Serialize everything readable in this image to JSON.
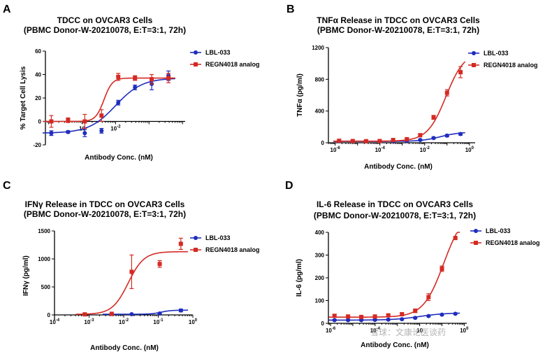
{
  "colors": {
    "lbl": "#1f2dbd",
    "regn": "#d42a24",
    "axis": "#000000"
  },
  "watermark": "雪球：文康论医谈药",
  "chart_data": [
    {
      "type": "scatter",
      "panel": "A",
      "title": "TDCC on OVCAR3 Cells",
      "subtitle": "(PBMC Donor-W-20210078, E:T=3:1, 72h)",
      "xlabel": "Antibody Conc. (nM)",
      "ylabel": "% Target Cell Lysis",
      "xscale": "log",
      "xlim": [
        8e-05,
        1.2
      ],
      "ylim": [
        -20,
        60
      ],
      "yticks": [
        -20,
        0,
        20,
        40,
        60
      ],
      "xticks": [
        {
          "v": 0.001,
          "b": "10",
          "e": ""
        },
        {
          "v": 0.01,
          "b": "10",
          "e": "-2"
        }
      ],
      "legend": [
        "LBL-033",
        "REGN4018 analog"
      ],
      "legend_position": "top-right",
      "series": [
        {
          "name": "LBL-033",
          "color": "lbl",
          "marker": "circle",
          "x": [
            0.00012,
            0.00038,
            0.0012,
            0.0038,
            0.012,
            0.038,
            0.12,
            0.38
          ],
          "y": [
            -10,
            -9,
            -10,
            -8,
            16,
            29,
            32,
            39
          ],
          "err": [
            2,
            1,
            3,
            2,
            2,
            2,
            5,
            4
          ],
          "fit": {
            "bottom": -10,
            "top": 37,
            "ec50": 0.01,
            "hill": 1.1
          }
        },
        {
          "name": "REGN4018 analog",
          "color": "regn",
          "marker": "square",
          "x": [
            0.00012,
            0.00038,
            0.0012,
            0.0038,
            0.012,
            0.038,
            0.12,
            0.38
          ],
          "y": [
            0,
            1,
            0,
            5,
            38,
            37,
            36,
            37
          ],
          "err": [
            5,
            2,
            6,
            5,
            3,
            2,
            4,
            4
          ],
          "fit": {
            "bottom": 0,
            "top": 37,
            "ec50": 0.0045,
            "hill": 3.5
          }
        }
      ]
    },
    {
      "type": "scatter",
      "panel": "B",
      "title": "TNFα Release in TDCC on OVCAR3 Cells",
      "subtitle": "(PBMC Donor-W-20210078, E:T=3:1, 72h)",
      "xlabel": "Antibody Conc. (nM)",
      "ylabel": "TNFα (pg/ml)",
      "xscale": "log",
      "xlim": [
        5e-07,
        1.8
      ],
      "ylim": [
        0,
        1200
      ],
      "yticks": [
        0,
        400,
        800,
        1200
      ],
      "xticks": [
        {
          "v": 1e-06,
          "b": "10",
          "e": "-6"
        },
        {
          "v": 0.0001,
          "b": "10",
          "e": "-4"
        },
        {
          "v": 0.01,
          "b": "10",
          "e": "-2"
        },
        {
          "v": 1,
          "b": "10",
          "e": "0"
        }
      ],
      "legend": [
        "LBL-033",
        "REGN4018 analog"
      ],
      "legend_position": "top-right",
      "series": [
        {
          "name": "LBL-033",
          "color": "lbl",
          "marker": "circle",
          "x": [
            1.5e-06,
            6.1e-06,
            2.4e-05,
            9.8e-05,
            0.00039,
            0.0016,
            0.0063,
            0.025,
            0.1,
            0.4
          ],
          "y": [
            20,
            18,
            17,
            18,
            20,
            22,
            35,
            60,
            90,
            110
          ],
          "err": [
            10,
            8,
            8,
            8,
            8,
            8,
            10,
            12,
            15,
            15
          ],
          "fit": {
            "bottom": 17,
            "top": 135,
            "ec50": 0.05,
            "hill": 1.0
          }
        },
        {
          "name": "REGN4018 analog",
          "color": "regn",
          "marker": "square",
          "x": [
            1.5e-06,
            6.1e-06,
            2.4e-05,
            9.8e-05,
            0.00039,
            0.0016,
            0.0063,
            0.025,
            0.1,
            0.4
          ],
          "y": [
            25,
            22,
            20,
            22,
            35,
            45,
            95,
            320,
            630,
            890
          ],
          "err": [
            12,
            10,
            10,
            10,
            10,
            12,
            20,
            25,
            40,
            70
          ],
          "fit": {
            "bottom": 20,
            "top": 1150,
            "ec50": 0.09,
            "hill": 1.05
          }
        }
      ]
    },
    {
      "type": "scatter",
      "panel": "C",
      "title": "IFNγ Release in TDCC on OVCAR3 Cells",
      "subtitle": "(PBMC Donor-W-20210078, E:T=3:1, 72h)",
      "xlabel": "Antibody Conc. (nM)",
      "ylabel": "IFNγ (pg/ml)",
      "xscale": "log",
      "xlim": [
        0.0001,
        1
      ],
      "ylim": [
        -100,
        1500
      ],
      "yticks": [
        0,
        500,
        1000,
        1500
      ],
      "xticks": [
        {
          "v": 0.0001,
          "b": "10",
          "e": "-4"
        },
        {
          "v": 0.001,
          "b": "10",
          "e": "-3"
        },
        {
          "v": 0.01,
          "b": "10",
          "e": "-2"
        },
        {
          "v": 0.1,
          "b": "10",
          "e": "-1"
        },
        {
          "v": 1,
          "b": "10",
          "e": "0"
        }
      ],
      "legend": [
        "LBL-033",
        "REGN4018 analog"
      ],
      "legend_position": "top-right",
      "series": [
        {
          "name": "LBL-033",
          "color": "lbl",
          "marker": "circle",
          "x": [
            0.0045,
            0.017,
            0.11,
            0.45
          ],
          "y": [
            15,
            12,
            25,
            80
          ],
          "err": [
            5,
            5,
            8,
            25
          ],
          "fit": {
            "bottom": 12,
            "top": 85,
            "ec50": 0.12,
            "hill": 3.0
          }
        },
        {
          "name": "REGN4018 analog",
          "color": "regn",
          "marker": "square",
          "x": [
            0.00075,
            0.0045,
            0.017,
            0.11,
            0.45
          ],
          "y": [
            10,
            20,
            770,
            910,
            1270
          ],
          "err": [
            10,
            10,
            300,
            60,
            100
          ],
          "fit": {
            "bottom": 10,
            "top": 1130,
            "ec50": 0.0135,
            "hill": 1.9
          }
        }
      ]
    },
    {
      "type": "scatter",
      "panel": "D",
      "title": "IL-6 Release in TDCC on OVCAR3 Cells",
      "subtitle": "(PBMC Donor-W-20210078, E:T=3:1, 72h)",
      "xlabel": "Antibody Conc. (nM)",
      "ylabel": "IL-6 (pg/ml)",
      "xscale": "log",
      "xlim": [
        8e-07,
        1.3
      ],
      "ylim": [
        0,
        400
      ],
      "yticks": [
        0,
        100,
        200,
        300,
        400
      ],
      "xticks": [
        {
          "v": 1e-06,
          "b": "10",
          "e": "-6"
        },
        {
          "v": 0.0001,
          "b": "10",
          "e": "-4"
        },
        {
          "v": 0.01,
          "b": "10",
          "e": ""
        },
        {
          "v": 1,
          "b": "10",
          "e": "0"
        }
      ],
      "legend": [
        "LBL-033",
        "REGN4018 analog"
      ],
      "legend_position": "top-right",
      "series": [
        {
          "name": "LBL-033",
          "color": "lbl",
          "marker": "circle",
          "x": [
            1.5e-06,
            6.1e-06,
            2.4e-05,
            9.8e-05,
            0.00039,
            0.0016,
            0.0063,
            0.025,
            0.1,
            0.4
          ],
          "y": [
            14,
            14,
            14,
            15,
            16,
            18,
            24,
            32,
            38,
            42
          ],
          "err": [
            3,
            3,
            3,
            3,
            3,
            3,
            3,
            3,
            3,
            3
          ],
          "fit": {
            "bottom": 14,
            "top": 46,
            "ec50": 0.01,
            "hill": 0.75
          }
        },
        {
          "name": "REGN4018 analog",
          "color": "regn",
          "marker": "square",
          "x": [
            1.5e-06,
            6.1e-06,
            2.4e-05,
            9.8e-05,
            0.00039,
            0.0016,
            0.0063,
            0.025,
            0.1,
            0.4
          ],
          "y": [
            33,
            30,
            28,
            30,
            35,
            40,
            55,
            115,
            240,
            375
          ],
          "err": [
            6,
            5,
            5,
            5,
            5,
            6,
            8,
            15,
            12,
            6
          ],
          "fit": {
            "bottom": 27,
            "top": 500,
            "ec50": 0.12,
            "hill": 0.95
          }
        }
      ]
    }
  ]
}
